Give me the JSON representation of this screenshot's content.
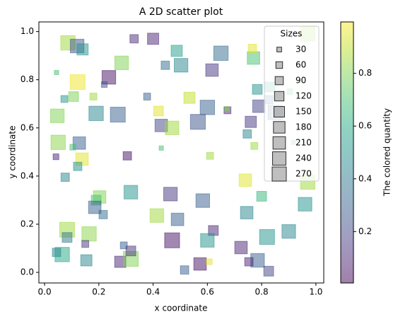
{
  "chart_data": {
    "type": "scatter",
    "title": "A 2D scatter plot",
    "x_label": "x coordinate",
    "y_label": "y coordinate",
    "xlim": [
      -0.021,
      1.029
    ],
    "ylim": [
      -0.044,
      1.04
    ],
    "xticks": [
      {
        "value": 0,
        "label": "0.0"
      },
      0.2,
      0.4,
      0.6,
      0.8,
      {
        "value": 1,
        "label": "1.0"
      }
    ],
    "yticks": [
      {
        "value": 0,
        "label": "0.0"
      },
      0.2,
      0.4,
      0.6,
      0.8,
      {
        "value": 1,
        "label": "1.0"
      }
    ],
    "marker": "square",
    "colormap": "viridis",
    "alpha": 0.5,
    "series": [
      {
        "x": [
          0.086,
          0.12,
          0.14,
          0.4,
          0.33,
          0.284,
          0.237,
          0.22,
          0.122,
          0.044,
          0.107,
          0.073,
          0.18,
          0.19,
          0.27,
          0.047,
          0.05,
          0.128,
          0.138,
          0.122,
          0.104,
          0.042,
          0.076,
          0.305,
          0.378,
          0.445,
          0.487,
          0.503,
          0.617,
          0.65,
          0.42,
          0.43,
          0.47,
          0.534,
          0.6,
          0.565,
          0.674,
          0.43,
          0.61,
          0.77,
          0.766,
          0.784,
          0.79,
          0.76,
          0.747,
          0.773,
          0.74,
          0.8,
          0.745,
          0.83,
          0.826,
          0.85,
          0.904,
          0.97,
          0.97,
          0.96,
          0.9,
          0.82,
          0.785,
          0.826,
          0.724,
          0.753,
          0.622,
          0.6,
          0.573,
          0.516,
          0.47,
          0.49,
          0.414,
          0.464,
          0.583,
          0.318,
          0.203,
          0.19,
          0.185,
          0.216,
          0.083,
          0.083,
          0.164,
          0.15,
          0.065,
          0.044,
          0.154,
          0.279,
          0.318,
          0.318,
          0.292,
          0.607,
          0.672,
          0.917
        ],
        "y": [
          0.953,
          0.94,
          0.926,
          0.97,
          0.97,
          0.87,
          0.81,
          0.78,
          0.79,
          0.83,
          0.73,
          0.72,
          0.73,
          0.66,
          0.655,
          0.65,
          0.54,
          0.537,
          0.47,
          0.44,
          0.52,
          0.48,
          0.395,
          0.484,
          0.73,
          0.86,
          0.92,
          0.86,
          0.84,
          0.91,
          0.67,
          0.61,
          0.6,
          0.725,
          0.685,
          0.625,
          0.673,
          0.516,
          0.484,
          0.89,
          0.93,
          0.76,
          0.69,
          0.625,
          0.575,
          0.525,
          0.383,
          0.316,
          0.248,
          0.77,
          0.717,
          0.664,
          0.75,
          0.99,
          0.375,
          0.283,
          0.17,
          0.147,
          0.05,
          0.005,
          0.103,
          0.044,
          0.174,
          0.133,
          0.035,
          0.01,
          0.133,
          0.22,
          0.236,
          0.325,
          0.298,
          0.333,
          0.313,
          0.3,
          0.27,
          0.24,
          0.177,
          0.145,
          0.16,
          0.118,
          0.074,
          0.083,
          0.05,
          0.044,
          0.056,
          0.089,
          0.112,
          0.044,
          0.68,
          0.54
        ],
        "sizes": [
          280,
          250,
          170,
          170,
          95,
          250,
          250,
          45,
          300,
          25,
          130,
          65,
          65,
          280,
          300,
          250,
          280,
          210,
          210,
          95,
          45,
          45,
          95,
          95,
          65,
          95,
          170,
          250,
          210,
          280,
          130,
          210,
          250,
          170,
          280,
          300,
          65,
          25,
          65,
          210,
          95,
          130,
          210,
          170,
          95,
          65,
          210,
          130,
          210,
          130,
          95,
          280,
          45,
          280,
          280,
          250,
          250,
          300,
          250,
          130,
          210,
          95,
          130,
          250,
          210,
          95,
          300,
          210,
          250,
          250,
          250,
          250,
          210,
          130,
          210,
          95,
          300,
          130,
          280,
          65,
          280,
          95,
          170,
          170,
          300,
          130,
          65,
          45,
          25,
          25
        ],
        "c": [
          0.85,
          0.25,
          0.5,
          0.1,
          0.12,
          0.8,
          0.05,
          0.25,
          0.97,
          0.7,
          0.8,
          0.5,
          0.85,
          0.45,
          0.3,
          0.8,
          0.82,
          0.3,
          0.95,
          0.5,
          0.7,
          0.1,
          0.45,
          0.05,
          0.3,
          0.35,
          0.55,
          0.45,
          0.15,
          0.35,
          0.95,
          0.2,
          0.85,
          0.9,
          0.3,
          0.25,
          0.1,
          0.7,
          0.85,
          0.7,
          0.95,
          0.5,
          0.2,
          0.15,
          0.45,
          0.85,
          0.95,
          0.65,
          0.45,
          0.55,
          0.25,
          0.3,
          0.7,
          0.85,
          0.85,
          0.5,
          0.45,
          0.5,
          0.3,
          0.2,
          0.1,
          0.1,
          0.1,
          0.5,
          0.05,
          0.3,
          0.05,
          0.3,
          0.85,
          0.15,
          0.3,
          0.5,
          0.8,
          0.7,
          0.3,
          0.35,
          0.85,
          0.4,
          0.82,
          0.15,
          0.6,
          0.45,
          0.45,
          0.1,
          0.8,
          0.15,
          0.3,
          0.95,
          0.8,
          0.7
        ]
      }
    ],
    "size_legend": {
      "title": "Sizes",
      "values": [
        30,
        60,
        90,
        120,
        150,
        180,
        210,
        240,
        270
      ],
      "color": "#808080"
    },
    "colorbar": {
      "label": "The colored quantity",
      "lim": [
        0.005,
        0.995
      ],
      "ticks": [
        0.2,
        0.4,
        0.6,
        0.8
      ]
    }
  }
}
